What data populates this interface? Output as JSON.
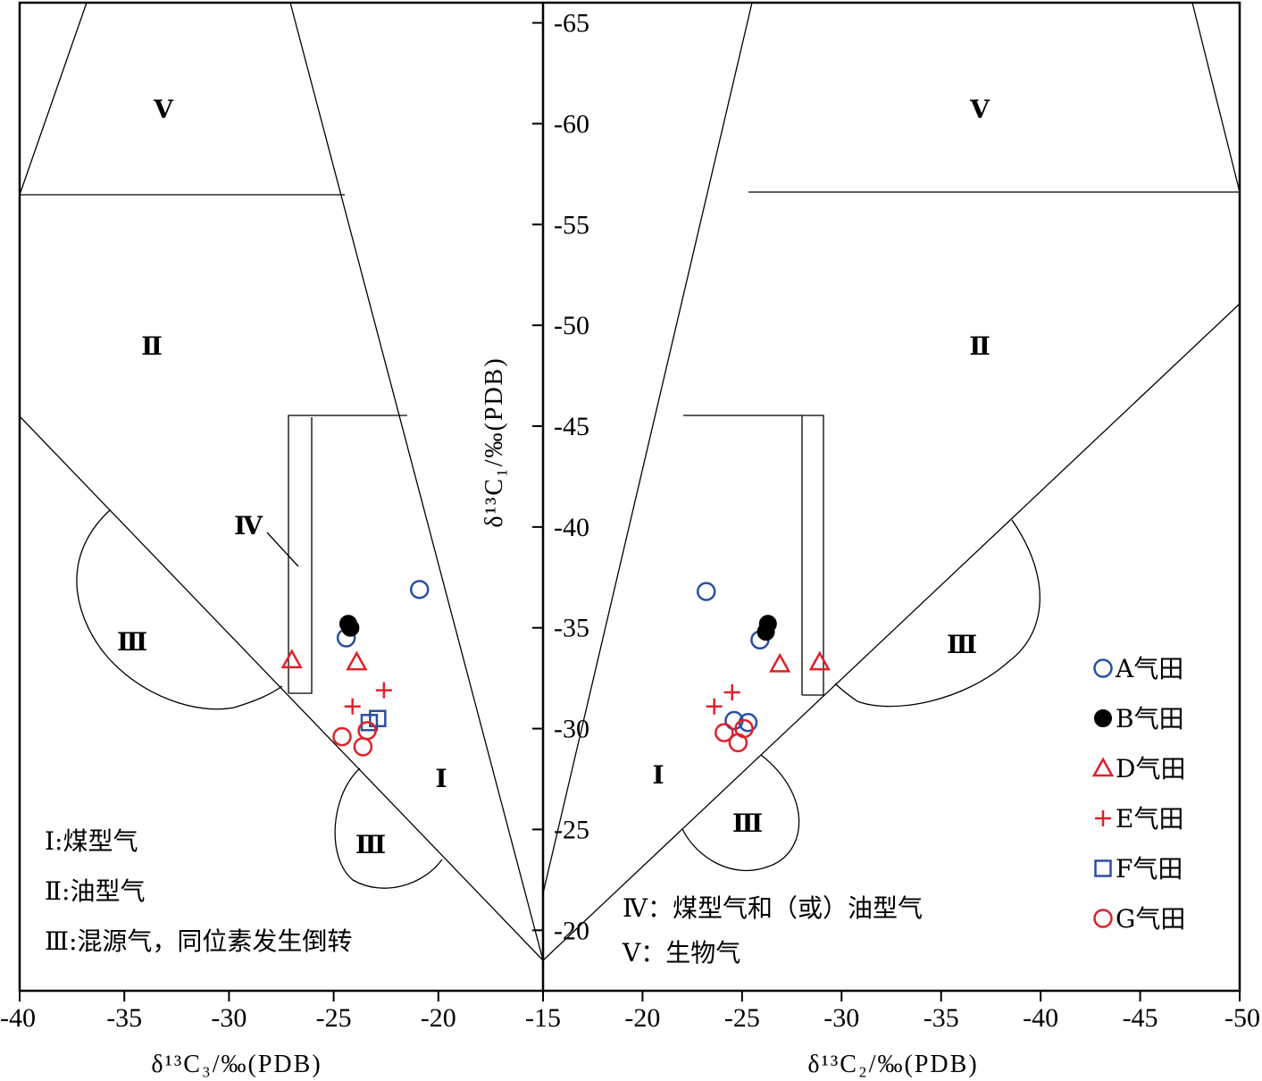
{
  "chart_data": {
    "type": "scatter",
    "title": "",
    "left_panel": {
      "xlabel": "δ¹³C₃/‰(PDB)",
      "xlim": [
        -40,
        -15
      ],
      "xticks": [
        "-40",
        "-35",
        "-30",
        "-25",
        "-20",
        "-15"
      ]
    },
    "right_panel": {
      "xlabel": "δ¹³C₂/‰(PDB)",
      "xlim": [
        -15,
        -50
      ],
      "xticks": [
        "-20",
        "-25",
        "-30",
        "-35",
        "-40",
        "-45",
        "-50"
      ]
    },
    "ylabel": "δ¹³C₁/‰(PDB)",
    "ylim": [
      -17,
      -66
    ],
    "yticks": [
      "-20",
      "-25",
      "-30",
      "-35",
      "-40",
      "-45",
      "-50",
      "-55",
      "-60",
      "-65"
    ],
    "zone_labels": {
      "I": "Ⅰ",
      "II": "Ⅱ",
      "III": "Ⅲ",
      "IV": "Ⅳ",
      "V": "Ⅴ"
    },
    "notes": [
      "Ⅰ:煤型气",
      "Ⅱ:油型气",
      "Ⅲ:混源气，同位素发生倒转",
      "Ⅳ：煤型气和（或）油型气",
      "Ⅴ：生物气"
    ],
    "series": [
      {
        "name": "A气田",
        "marker": "circle-open",
        "color": "#2a4fa0",
        "c3": [
          [
            -20.9,
            -36.9
          ],
          [
            -24.4,
            -34.5
          ]
        ],
        "c2": [
          [
            -23.2,
            -36.8
          ],
          [
            -25.9,
            -34.4
          ],
          [
            -24.6,
            -30.4
          ],
          [
            -25.3,
            -30.3
          ]
        ]
      },
      {
        "name": "B气田",
        "marker": "circle-filled",
        "color": "#000000",
        "c3": [
          [
            -24.3,
            -35.2
          ],
          [
            -24.2,
            -35.0
          ]
        ],
        "c2": [
          [
            -26.3,
            -35.2
          ],
          [
            -26.2,
            -34.8
          ]
        ]
      },
      {
        "name": "D气田",
        "marker": "triangle-open",
        "color": "#e0202a",
        "c3": [
          [
            -27.0,
            -33.4
          ],
          [
            -23.9,
            -33.3
          ]
        ],
        "c2": [
          [
            -26.9,
            -33.2
          ],
          [
            -28.9,
            -33.3
          ]
        ]
      },
      {
        "name": "E气田",
        "marker": "plus",
        "color": "#e0202a",
        "c3": [
          [
            -22.6,
            -31.9
          ],
          [
            -24.1,
            -31.1
          ]
        ],
        "c2": [
          [
            -24.5,
            -31.8
          ],
          [
            -23.6,
            -31.1
          ]
        ]
      },
      {
        "name": "F气田",
        "marker": "square-open",
        "color": "#2a4fa0",
        "c3": [
          [
            -22.9,
            -30.5
          ],
          [
            -23.3,
            -30.3
          ]
        ],
        "c2": []
      },
      {
        "name": "G气田",
        "marker": "circle-open",
        "color": "#e0202a",
        "c3": [
          [
            -24.6,
            -29.6
          ],
          [
            -23.4,
            -29.9
          ],
          [
            -23.6,
            -29.1
          ]
        ],
        "c2": [
          [
            -24.1,
            -29.8
          ],
          [
            -24.8,
            -29.3
          ],
          [
            -25.1,
            -30.0
          ]
        ]
      }
    ]
  },
  "colors": {
    "blue": "#2a4fa0",
    "red": "#e0202a",
    "black": "#000000"
  }
}
